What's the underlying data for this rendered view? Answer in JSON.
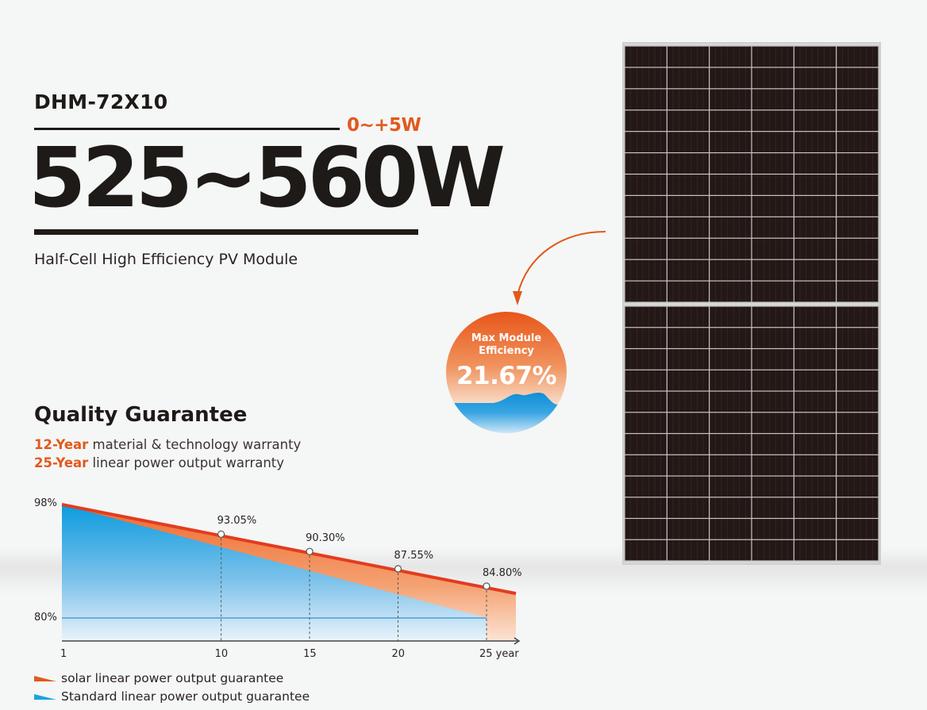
{
  "header": {
    "model": "DHM-72X10",
    "tolerance": "0~+5W",
    "power_range": "525~560W",
    "subtitle": "Half-Cell High Efficiency PV Module"
  },
  "efficiency_badge": {
    "label": "Max Module Efficiency",
    "label_line1": "Max Module",
    "label_line2": "Efficiency",
    "value": "21.67%"
  },
  "quality": {
    "title": "Quality Guarantee",
    "lines": [
      {
        "highlight": "12-Year",
        "text": " material & technology warranty"
      },
      {
        "highlight": "25-Year",
        "text": " linear power output warranty"
      }
    ]
  },
  "colors": {
    "accent_orange": "#e05a1c",
    "solar_line": "#e23c20",
    "standard_blue": "#0d9ddc",
    "panel_cell": "#231816",
    "text_dark": "#1e1a18"
  },
  "chart_data": {
    "type": "area",
    "title": "",
    "xlabel": "year",
    "ylabel": "",
    "x_ticks": [
      "1",
      "10",
      "15",
      "20",
      "25 year"
    ],
    "y_ticks": [
      "98%",
      "80%"
    ],
    "ylim": [
      80,
      98
    ],
    "series": [
      {
        "name": "solar linear power output guarantee",
        "x": [
          1,
          10,
          15,
          20,
          25
        ],
        "values": [
          98,
          93.05,
          90.3,
          87.55,
          84.8
        ],
        "color": "#e05a1c"
      },
      {
        "name": "Standard linear power output guarantee",
        "x": [
          1,
          25
        ],
        "values": [
          98,
          80
        ],
        "color": "#0d9ddc"
      }
    ],
    "point_labels": [
      {
        "x": 10,
        "label": "93.05%"
      },
      {
        "x": 15,
        "label": "90.30%"
      },
      {
        "x": 20,
        "label": "87.55%"
      },
      {
        "x": 25,
        "label": "84.80%"
      }
    ],
    "reference_line": {
      "value": 80,
      "label": "80%"
    },
    "legend": [
      "solar linear power output guarantee",
      "Standard linear power output guarantee"
    ],
    "legend_position": "bottom-left",
    "grid": false
  }
}
